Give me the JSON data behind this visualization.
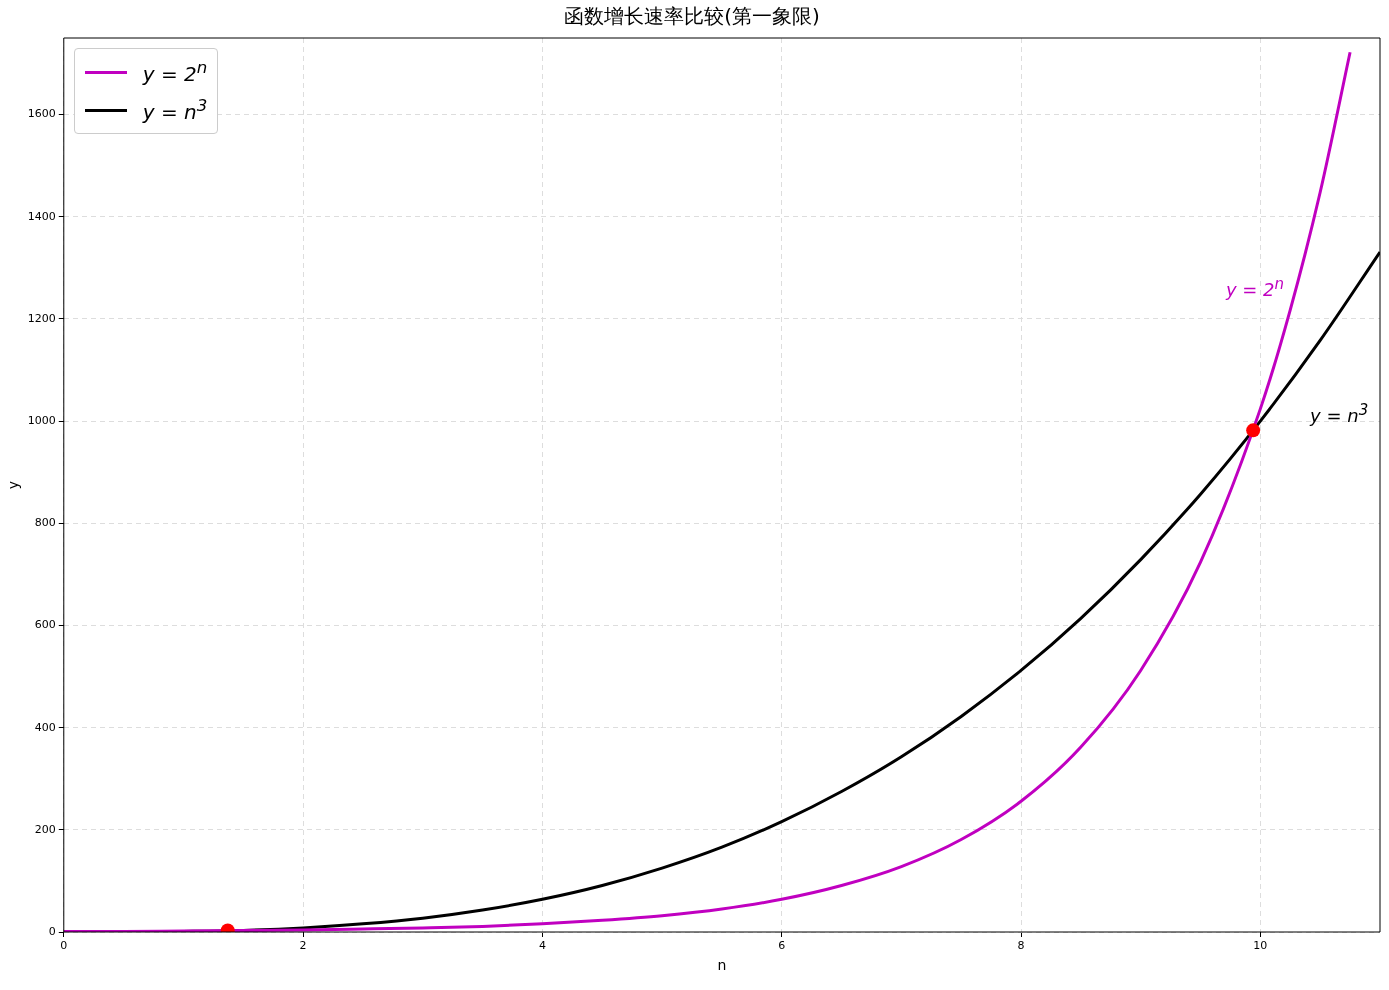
{
  "chart_data": {
    "type": "line",
    "title": "函数增长速率比较(第一象限)",
    "xlabel": "n",
    "ylabel": "y",
    "series": [
      {
        "name": "y = 2$^{n}$",
        "color": "#c000c0",
        "x": [
          0,
          0.5,
          1,
          1.5,
          2,
          2.5,
          3,
          3.5,
          4,
          4.5,
          5,
          5.5,
          6,
          6.5,
          7,
          7.5,
          8,
          8.5,
          9,
          9.5,
          10,
          10.25,
          10.5,
          10.75
        ],
        "values": [
          1,
          1,
          2,
          3,
          4,
          6,
          8,
          11,
          16,
          23,
          32,
          45,
          64,
          91,
          128,
          181,
          256,
          362,
          512,
          724,
          1024,
          1218,
          1448,
          1722
        ]
      },
      {
        "name": "y = n$^{3}$",
        "color": "#000000",
        "x": [
          0,
          0.5,
          1,
          1.5,
          2,
          2.5,
          3,
          3.5,
          4,
          4.5,
          5,
          5.5,
          6,
          6.5,
          7,
          7.5,
          8,
          8.5,
          9,
          9.5,
          10,
          10.5,
          11
        ],
        "values": [
          0,
          0,
          1,
          3,
          8,
          16,
          27,
          43,
          64,
          91,
          125,
          166,
          216,
          275,
          343,
          422,
          512,
          614,
          729,
          857,
          1000,
          1158,
          1331
        ]
      },
      {
        "type": "scatter",
        "color": "#ff0000",
        "marker": "circle",
        "x": [
          1.37,
          9.94
        ],
        "values": [
          3,
          982
        ]
      }
    ],
    "annotations": [
      "y = 2$^{n}$",
      "y = n$^{3}$"
    ],
    "xlim": [
      0,
      11
    ],
    "xticks": [
      0,
      2,
      4,
      6,
      8,
      10
    ],
    "ylim": [
      0,
      1750
    ],
    "yticks": [
      0,
      200,
      400,
      600,
      800,
      1000,
      1200,
      1400,
      1600
    ],
    "grid": true,
    "legend": "top left"
  }
}
